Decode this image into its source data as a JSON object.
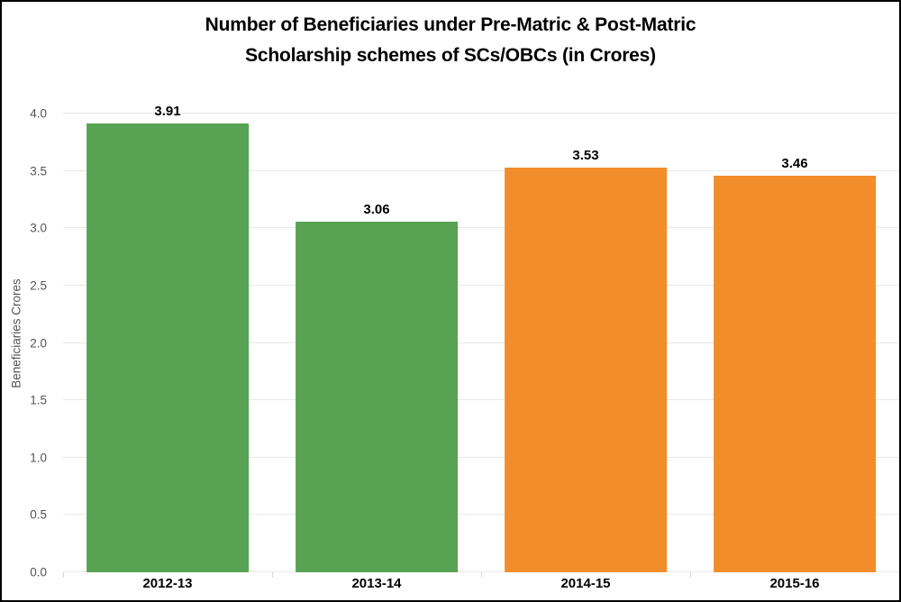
{
  "chart_data": {
    "type": "bar",
    "title": "Number of Beneficiaries under Pre-Matric & Post-Matric Scholarship schemes of SCs/OBCs (in Crores)",
    "title_lines": [
      "Number of Beneficiaries under Pre-Matric & Post-Matric",
      "Scholarship schemes of SCs/OBCs (in Crores)"
    ],
    "categories": [
      "2012-13",
      "2013-14",
      "2014-15",
      "2015-16"
    ],
    "values": [
      3.91,
      3.06,
      3.53,
      3.46
    ],
    "value_labels": [
      "3.91",
      "3.06",
      "3.53",
      "3.46"
    ],
    "bar_colors": [
      "#58a253",
      "#58a253",
      "#f28d2b",
      "#f28d2b"
    ],
    "xlabel": "",
    "ylabel": "Beneficiaries Crores",
    "ylim": [
      0,
      4.0
    ],
    "yticks": [
      0.0,
      0.5,
      1.0,
      1.5,
      2.0,
      2.5,
      3.0,
      3.5,
      4.0
    ],
    "grid": "horizontal",
    "legend": "none",
    "colors": {
      "green": "#58a253",
      "orange": "#f28d2b",
      "gridline": "#e9e9e7",
      "axis_tick_text": "#555555",
      "label_text": "#000000",
      "frame_border": "#000000"
    }
  }
}
